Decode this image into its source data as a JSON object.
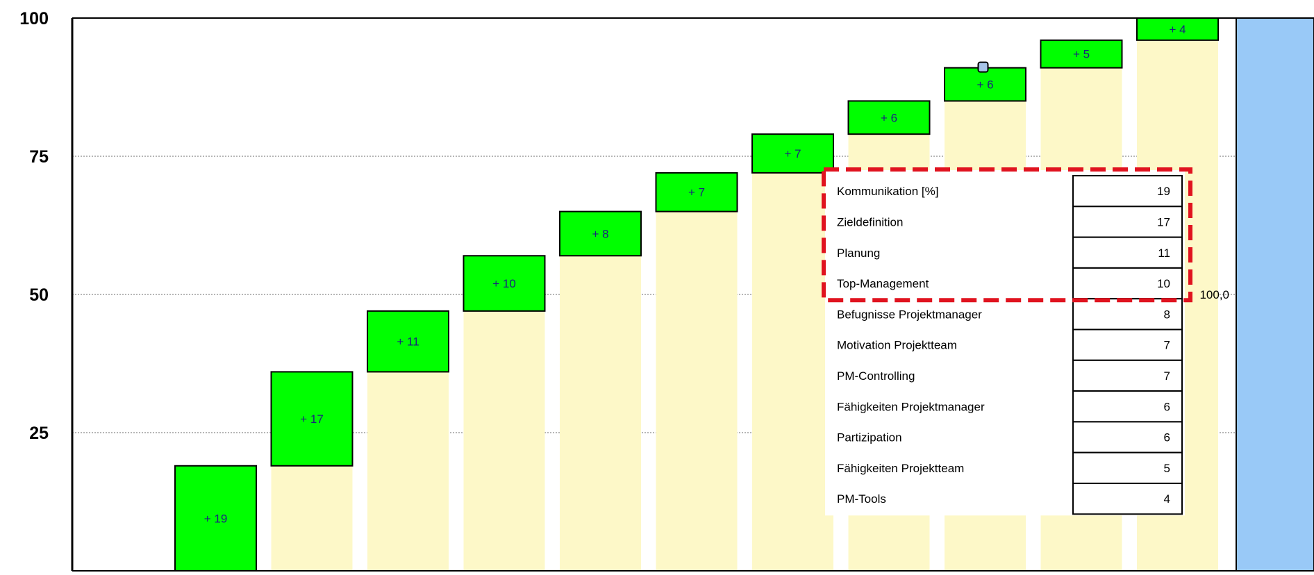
{
  "chart_data": {
    "type": "bar",
    "subtype": "waterfall",
    "ylim": [
      0,
      100
    ],
    "yticks": [
      {
        "value": 100,
        "label": "100"
      },
      {
        "value": 75,
        "label": "75"
      },
      {
        "value": 50,
        "label": "50"
      },
      {
        "value": 25,
        "label": "25"
      }
    ],
    "grid": true,
    "categories": [
      "Kommunikation [%]",
      "Zieldefinition",
      "Planung",
      "Top-Management",
      "Befugnisse Projektmanager",
      "Motivation Projektteam",
      "PM-Controlling",
      "Fähigkeiten Projektmanager",
      "Partizipation",
      "Fähigkeiten Projektteam",
      "PM-Tools"
    ],
    "values": [
      19,
      17,
      11,
      10,
      8,
      7,
      7,
      6,
      6,
      5,
      4
    ],
    "bar_labels": [
      "+ 19",
      "+ 17",
      "+ 11",
      "+ 10",
      "+ 8",
      "+ 7",
      "+ 7",
      "+ 6",
      "+ 6",
      "+ 5",
      "+ 4"
    ],
    "total": {
      "value": 100,
      "label": "100,0"
    },
    "highlighted_categories": [
      "Kommunikation [%]",
      "Zieldefinition",
      "Planung",
      "Top-Management"
    ],
    "colors": {
      "increment": "#00ff00",
      "base": "#fdf8c8",
      "total": "#99c9f7",
      "highlight_border": "#e0131f",
      "grid": "#8a8a8a",
      "bar_text": "#1a237e"
    }
  }
}
